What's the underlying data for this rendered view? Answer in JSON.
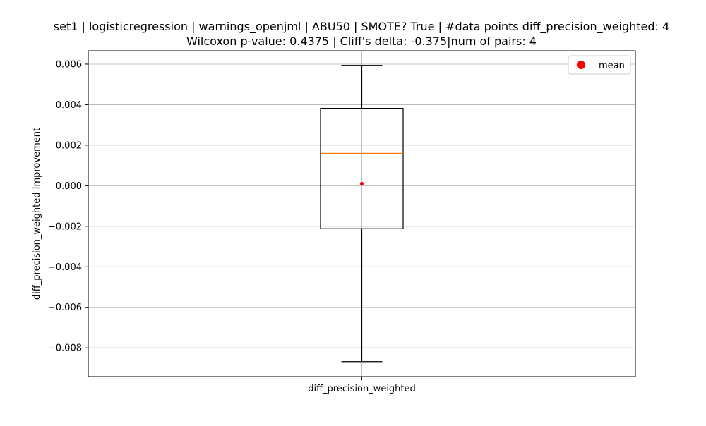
{
  "chart_data": {
    "type": "box",
    "title_line1": "set1 | logisticregression | warnings_openjml | ABU50 | SMOTE? True | #data points diff_precision_weighted: 4",
    "title_line2": "Wilcoxon p-value: 0.4375 | Cliff's delta: -0.375|num of pairs: 4",
    "xlabel": "",
    "ylabel": "diff_precision_weighted Improvement",
    "categories": [
      "diff_precision_weighted"
    ],
    "boxes": [
      {
        "name": "diff_precision_weighted",
        "whisker_low": -0.00868,
        "q1": -0.00212,
        "median": 0.0016,
        "q3": 0.00382,
        "whisker_high": 0.00594,
        "mean": 0.0001
      }
    ],
    "ylim": [
      -0.00942,
      0.00666
    ],
    "yticks": [
      -0.008,
      -0.006,
      -0.004,
      -0.002,
      0.0,
      0.002,
      0.004,
      0.006
    ],
    "ytick_labels": [
      "−0.008",
      "−0.006",
      "−0.004",
      "−0.002",
      "0.000",
      "0.002",
      "0.004",
      "0.006"
    ],
    "grid": true,
    "legend": {
      "position": "upper-right",
      "entries": [
        {
          "label": "mean",
          "marker": "circle",
          "color": "#ff0000"
        }
      ]
    },
    "colors": {
      "box": "#000000",
      "median": "#ff7f0e",
      "mean": "#ff0000",
      "grid": "#b0b0b0"
    }
  }
}
